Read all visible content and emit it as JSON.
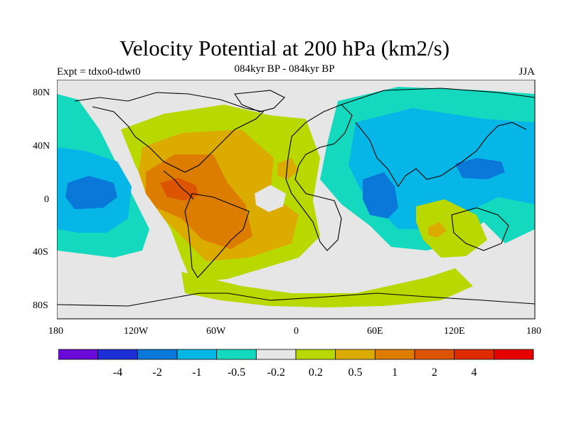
{
  "header": {
    "title": "Velocity Potential at 200 hPa (km2/s)",
    "left": "Expt = tdxo0-tdwt0",
    "center": "084kyr BP - 084kyr BP",
    "right": "JJA"
  },
  "map": {
    "projection": "cylindrical equidistant",
    "lon_range": [
      180,
      -180
    ],
    "lat_range": [
      -90,
      90
    ],
    "x_tick_labels": [
      "180",
      "120W",
      "60W",
      "0",
      "60E",
      "120E",
      "180"
    ],
    "y_tick_labels": [
      "80N",
      "40N",
      "0",
      "40S",
      "80S"
    ],
    "background_color": "#e6e6e6",
    "regions": [
      {
        "name": "central-pacific-low",
        "level": "-1"
      },
      {
        "name": "central-pacific-mid",
        "level": "-0.5"
      },
      {
        "name": "north-pacific",
        "level": "-0.5"
      },
      {
        "name": "americas-atlantic-outer",
        "level": "0.2"
      },
      {
        "name": "americas-atlantic-mid",
        "level": "0.5"
      },
      {
        "name": "americas-atlantic-inner",
        "level": "1"
      },
      {
        "name": "central-america-core",
        "level": "2"
      },
      {
        "name": "southern-ocean-band",
        "level": "0.2"
      },
      {
        "name": "australia-south",
        "level": "0.2"
      },
      {
        "name": "asia-outer",
        "level": "-0.2"
      },
      {
        "name": "asia-mid",
        "level": "-0.5"
      },
      {
        "name": "indian-ocean-core",
        "level": "-1"
      },
      {
        "name": "western-pacific-core",
        "level": "-1"
      }
    ]
  },
  "colorbar": {
    "colors": [
      "#6a0ad8",
      "#1f2fd8",
      "#0a78d8",
      "#05b6e6",
      "#15d9be",
      "#e6e6e6",
      "#b8d800",
      "#dcab00",
      "#dc7d00",
      "#dc5400",
      "#e02a00",
      "#e60000"
    ],
    "labels": [
      "-4",
      "-2",
      "-1",
      "-0.5",
      "-0.2",
      "0.2",
      "0.5",
      "1",
      "2",
      "4"
    ]
  }
}
